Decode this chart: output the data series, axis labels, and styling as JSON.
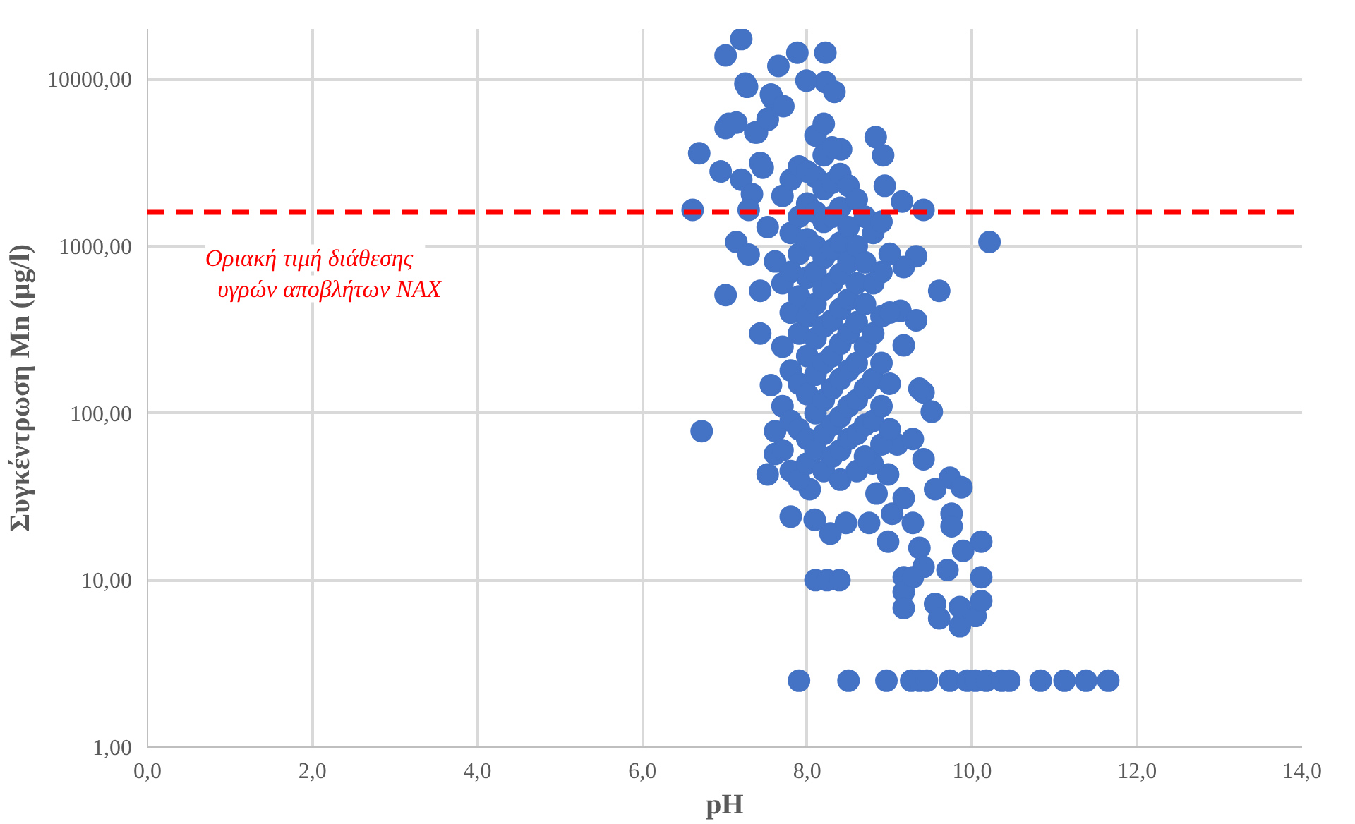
{
  "chart_data": {
    "type": "scatter",
    "xlabel": "pH",
    "ylabel": "Συγκέντρωση Mn (μg/l)",
    "xlim": [
      0,
      14
    ],
    "ylim": [
      1,
      20000
    ],
    "log": "y",
    "grid": true,
    "marker": "circle",
    "xticks": [
      {
        "value": 0,
        "label": "0,0"
      },
      {
        "value": 2,
        "label": "2,0"
      },
      {
        "value": 4,
        "label": "4,0"
      },
      {
        "value": 6,
        "label": "6,0"
      },
      {
        "value": 8,
        "label": "8,0"
      },
      {
        "value": 10,
        "label": "10,0"
      },
      {
        "value": 12,
        "label": "12,0"
      },
      {
        "value": 14,
        "label": "14,0"
      }
    ],
    "yticks": [
      {
        "value": 1,
        "label": "1,00"
      },
      {
        "value": 10,
        "label": "10,00"
      },
      {
        "value": 100,
        "label": "100,00"
      },
      {
        "value": 1000,
        "label": "1000,00"
      },
      {
        "value": 10000,
        "label": "10000,00"
      }
    ],
    "ref_lines": [
      {
        "axis": "y",
        "value": 1600,
        "label": "Οριακή  τιμή  διάθεσης\nυγρών αποβλήτων ΝΑΧ",
        "color": "#ff0000",
        "line_style": "dashed"
      }
    ],
    "series": [
      {
        "color": "#4472c4",
        "x": [
          7.2,
          7.01,
          7.88,
          8.22,
          7.65,
          7.25,
          8.22,
          8.33,
          7.99,
          7.58,
          7.01,
          7.14,
          7.39,
          7.52,
          6.69,
          7.43,
          6.95,
          7.2,
          8.83,
          8.92,
          8.94,
          9.15,
          9.41,
          6.61,
          10.21,
          7.14,
          7.29,
          9.6,
          7.01,
          7.43,
          7.43,
          6.72,
          7.9,
          8.5,
          8.96,
          9.26,
          9.36,
          9.45,
          9.73,
          9.94,
          10.04,
          10.17,
          10.36,
          10.45,
          10.83,
          11.12,
          11.38,
          11.65,
          8.1,
          8.24,
          8.39,
          9.09,
          9.28,
          9.41,
          9.73,
          9.87,
          9.55,
          9.75,
          9.75,
          10.11,
          9.89,
          10.11,
          9.7,
          9.17,
          9.17,
          9.17,
          9.55,
          9.6,
          9.85,
          10.04,
          10.11,
          9.85,
          9.36,
          8.98,
          9.41,
          9.28,
          9.28,
          9.03,
          8.75,
          8.28,
          8.09,
          7.8,
          7.52,
          7.61,
          7.61,
          7.56,
          9.41,
          9.51,
          8.03,
          8.47,
          8.84,
          8.98,
          9.17,
          8.79,
          9.32,
          9.17,
          9.13,
          9.32,
          9.17,
          9.36,
          7.37,
          7.61,
          7.46,
          7.52,
          7.05,
          7.27,
          7.56,
          7.71,
          8.41,
          7.33,
          7.52,
          7.29,
          7.7,
          7.7,
          7.7,
          7.7,
          7.7,
          7.8,
          7.8,
          7.8,
          7.8,
          7.8,
          7.8,
          7.8,
          7.9,
          7.9,
          7.9,
          7.9,
          7.9,
          7.9,
          7.9,
          7.9,
          8.0,
          8.0,
          8.0,
          8.0,
          8.0,
          8.0,
          8.0,
          8.0,
          8.0,
          8.1,
          8.1,
          8.1,
          8.1,
          8.1,
          8.1,
          8.1,
          8.1,
          8.1,
          8.1,
          8.2,
          8.2,
          8.2,
          8.2,
          8.2,
          8.2,
          8.2,
          8.2,
          8.2,
          8.2,
          8.2,
          8.3,
          8.3,
          8.3,
          8.3,
          8.3,
          8.3,
          8.3,
          8.3,
          8.3,
          8.3,
          8.4,
          8.4,
          8.4,
          8.4,
          8.4,
          8.4,
          8.4,
          8.4,
          8.4,
          8.4,
          8.5,
          8.5,
          8.5,
          8.5,
          8.5,
          8.5,
          8.5,
          8.5,
          8.6,
          8.6,
          8.6,
          8.6,
          8.6,
          8.6,
          8.6,
          8.6,
          8.7,
          8.7,
          8.7,
          8.7,
          8.7,
          8.7,
          8.7,
          8.8,
          8.8,
          8.8,
          8.8,
          8.8,
          8.9,
          8.9,
          8.9,
          8.9,
          8.9,
          8.9,
          9.0,
          9.0,
          9.0,
          9.0
        ],
        "values": [
          17400,
          13900,
          14400,
          14400,
          12000,
          9400,
          9600,
          8400,
          9800,
          7700,
          5100,
          5500,
          4800,
          5700,
          3600,
          3150,
          2800,
          2500,
          4500,
          3500,
          2300,
          1850,
          1650,
          1650,
          1060,
          1060,
          890,
          540,
          510,
          540,
          300,
          78,
          2.5,
          2.5,
          2.5,
          2.5,
          2.5,
          2.5,
          2.5,
          2.5,
          2.5,
          2.5,
          2.5,
          2.5,
          2.5,
          2.5,
          2.5,
          2.5,
          10,
          10,
          10,
          65,
          70,
          53,
          41,
          36,
          35,
          25,
          21,
          17,
          15,
          10.4,
          11.5,
          10.4,
          8.5,
          6.8,
          7.2,
          5.9,
          5.3,
          6.1,
          7.5,
          6.9,
          15.6,
          17,
          12,
          10.4,
          22,
          25,
          22,
          19,
          23,
          24,
          43,
          57,
          78,
          147,
          133,
          102,
          35,
          22,
          33,
          43,
          31,
          50,
          870,
          750,
          410,
          360,
          255,
          140,
          4800,
          810,
          2950,
          5800,
          5400,
          9000,
          8100,
          6900,
          3800,
          2050,
          1300,
          1650,
          2000,
          600,
          250,
          110,
          60,
          2500,
          1200,
          700,
          400,
          180,
          90,
          45,
          3000,
          1500,
          900,
          500,
          300,
          150,
          80,
          40,
          2800,
          1800,
          1100,
          650,
          380,
          220,
          130,
          70,
          50,
          4600,
          2600,
          1600,
          1000,
          700,
          450,
          280,
          170,
          100,
          60,
          5400,
          3500,
          2200,
          1400,
          850,
          550,
          330,
          200,
          120,
          75,
          45,
          3900,
          2400,
          1500,
          950,
          600,
          360,
          220,
          140,
          85,
          55,
          2700,
          1700,
          1050,
          680,
          420,
          260,
          160,
          95,
          60,
          40,
          2300,
          1300,
          800,
          480,
          300,
          180,
          110,
          70,
          1900,
          1000,
          600,
          350,
          200,
          120,
          75,
          45,
          1500,
          800,
          450,
          250,
          140,
          85,
          55,
          1200,
          600,
          300,
          160,
          90,
          1400,
          700,
          380,
          200,
          110,
          65,
          900,
          400,
          150,
          80
        ]
      }
    ]
  }
}
